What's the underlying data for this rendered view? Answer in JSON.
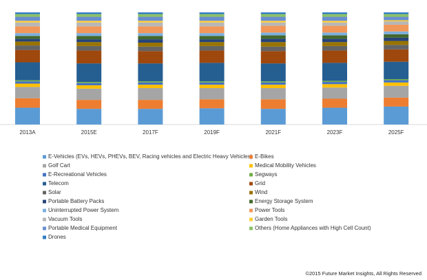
{
  "chart_data": {
    "type": "stacked_bar",
    "categories": [
      "2013A",
      "2015E",
      "2017F",
      "2019F",
      "2021F",
      "2023F",
      "2025F"
    ],
    "ylim": [
      0,
      100
    ],
    "series": [
      {
        "name": "E-Vehicles (EVs, HEVs, PHEVs, BEV, Racing vehicles and Electric Heavy Vehicles)",
        "color": "#5b9bd5",
        "values": [
          15,
          14,
          14,
          14.5,
          14,
          15,
          16
        ]
      },
      {
        "name": "E-Bikes",
        "color": "#ed7d31",
        "values": [
          8.5,
          8,
          8,
          8,
          8.5,
          8,
          8
        ]
      },
      {
        "name": "Golf Cart",
        "color": "#a5a5a5",
        "values": [
          10,
          10,
          10.5,
          10,
          10,
          10,
          10.5
        ]
      },
      {
        "name": "Medical Mobility Vehicles",
        "color": "#ffc000",
        "values": [
          3,
          3,
          3,
          3,
          3,
          3,
          3
        ]
      },
      {
        "name": "E-Recreational Vehicles",
        "color": "#4472c4",
        "values": [
          2,
          2,
          2,
          2,
          2,
          2,
          2
        ]
      },
      {
        "name": "Segways",
        "color": "#70ad47",
        "values": [
          1,
          1,
          1,
          1,
          1,
          1,
          1
        ]
      },
      {
        "name": "Telecom",
        "color": "#255e91",
        "values": [
          16,
          16.5,
          16,
          16.5,
          16,
          16,
          15.5
        ]
      },
      {
        "name": "Grid",
        "color": "#9e480e",
        "values": [
          11,
          11.5,
          11,
          11,
          11,
          11,
          11
        ]
      },
      {
        "name": "Solar",
        "color": "#636363",
        "values": [
          4,
          4,
          4,
          4,
          4,
          4,
          4
        ]
      },
      {
        "name": "Wind",
        "color": "#997300",
        "values": [
          3.5,
          3.5,
          3.5,
          3.5,
          4,
          3.5,
          3.5
        ]
      },
      {
        "name": "Portable Battery Packs",
        "color": "#264478",
        "values": [
          2.5,
          2.5,
          3,
          2.5,
          3,
          3,
          3
        ]
      },
      {
        "name": "Energy Storage System",
        "color": "#43682b",
        "values": [
          2.5,
          3,
          3,
          3,
          3,
          3,
          3
        ]
      },
      {
        "name": "Uninterrupted Power System",
        "color": "#7cafdd",
        "values": [
          2.5,
          2.5,
          2.5,
          2.5,
          2.5,
          2.5,
          2.5
        ]
      },
      {
        "name": "Power Tools",
        "color": "#f1975a",
        "values": [
          6,
          6,
          6,
          6,
          6,
          6,
          6
        ]
      },
      {
        "name": "Vacuum Tools",
        "color": "#b7b7b7",
        "values": [
          3.5,
          3.5,
          3.5,
          3.5,
          3,
          3,
          3
        ]
      },
      {
        "name": "Garden Tools",
        "color": "#ffcd33",
        "values": [
          1.5,
          1.5,
          1.5,
          1.5,
          1.5,
          1.5,
          1
        ]
      },
      {
        "name": "Portable Medical Equipment",
        "color": "#698ed0",
        "values": [
          3.5,
          3.5,
          3.5,
          3.5,
          3.5,
          3.5,
          3
        ]
      },
      {
        "name": "Others (Home Appliances with High Cell Count)",
        "color": "#8cc168",
        "values": [
          2.5,
          2.5,
          2.5,
          2.5,
          2.5,
          2.5,
          2.5
        ]
      },
      {
        "name": "Drones",
        "color": "#327dc2",
        "values": [
          1.5,
          1.5,
          1.5,
          1.5,
          1.5,
          1.5,
          1.5
        ]
      }
    ],
    "footer": "©2015 Future Market Insights, All Rights Reserved"
  }
}
